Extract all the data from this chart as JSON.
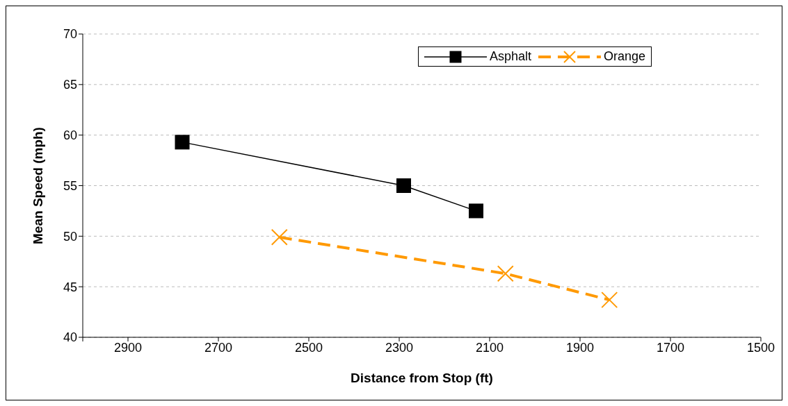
{
  "chart_data": {
    "type": "line",
    "xlabel": "Distance from Stop (ft)",
    "ylabel": "Mean Speed (mph)",
    "xlim": [
      3000,
      1500
    ],
    "xticks": [
      {
        "value": 3000,
        "label": null
      },
      2900,
      2700,
      2500,
      2300,
      2100,
      1900,
      1700,
      1500
    ],
    "ylim": [
      40,
      70
    ],
    "yticks": [
      40,
      45,
      50,
      55,
      60,
      65,
      70
    ],
    "grid": "y",
    "legend": "top right",
    "series": [
      {
        "name": "Asphalt",
        "color": "#000000",
        "marker": "square",
        "line_style": "solid",
        "x": [
          2780,
          2290,
          2130
        ],
        "values": [
          59.3,
          55.0,
          52.5
        ]
      },
      {
        "name": "Orange",
        "color": "#ff9900",
        "marker": "cross",
        "line_style": "dashed",
        "x": [
          2565,
          2065,
          1835
        ],
        "values": [
          49.9,
          46.3,
          43.7
        ]
      }
    ]
  }
}
